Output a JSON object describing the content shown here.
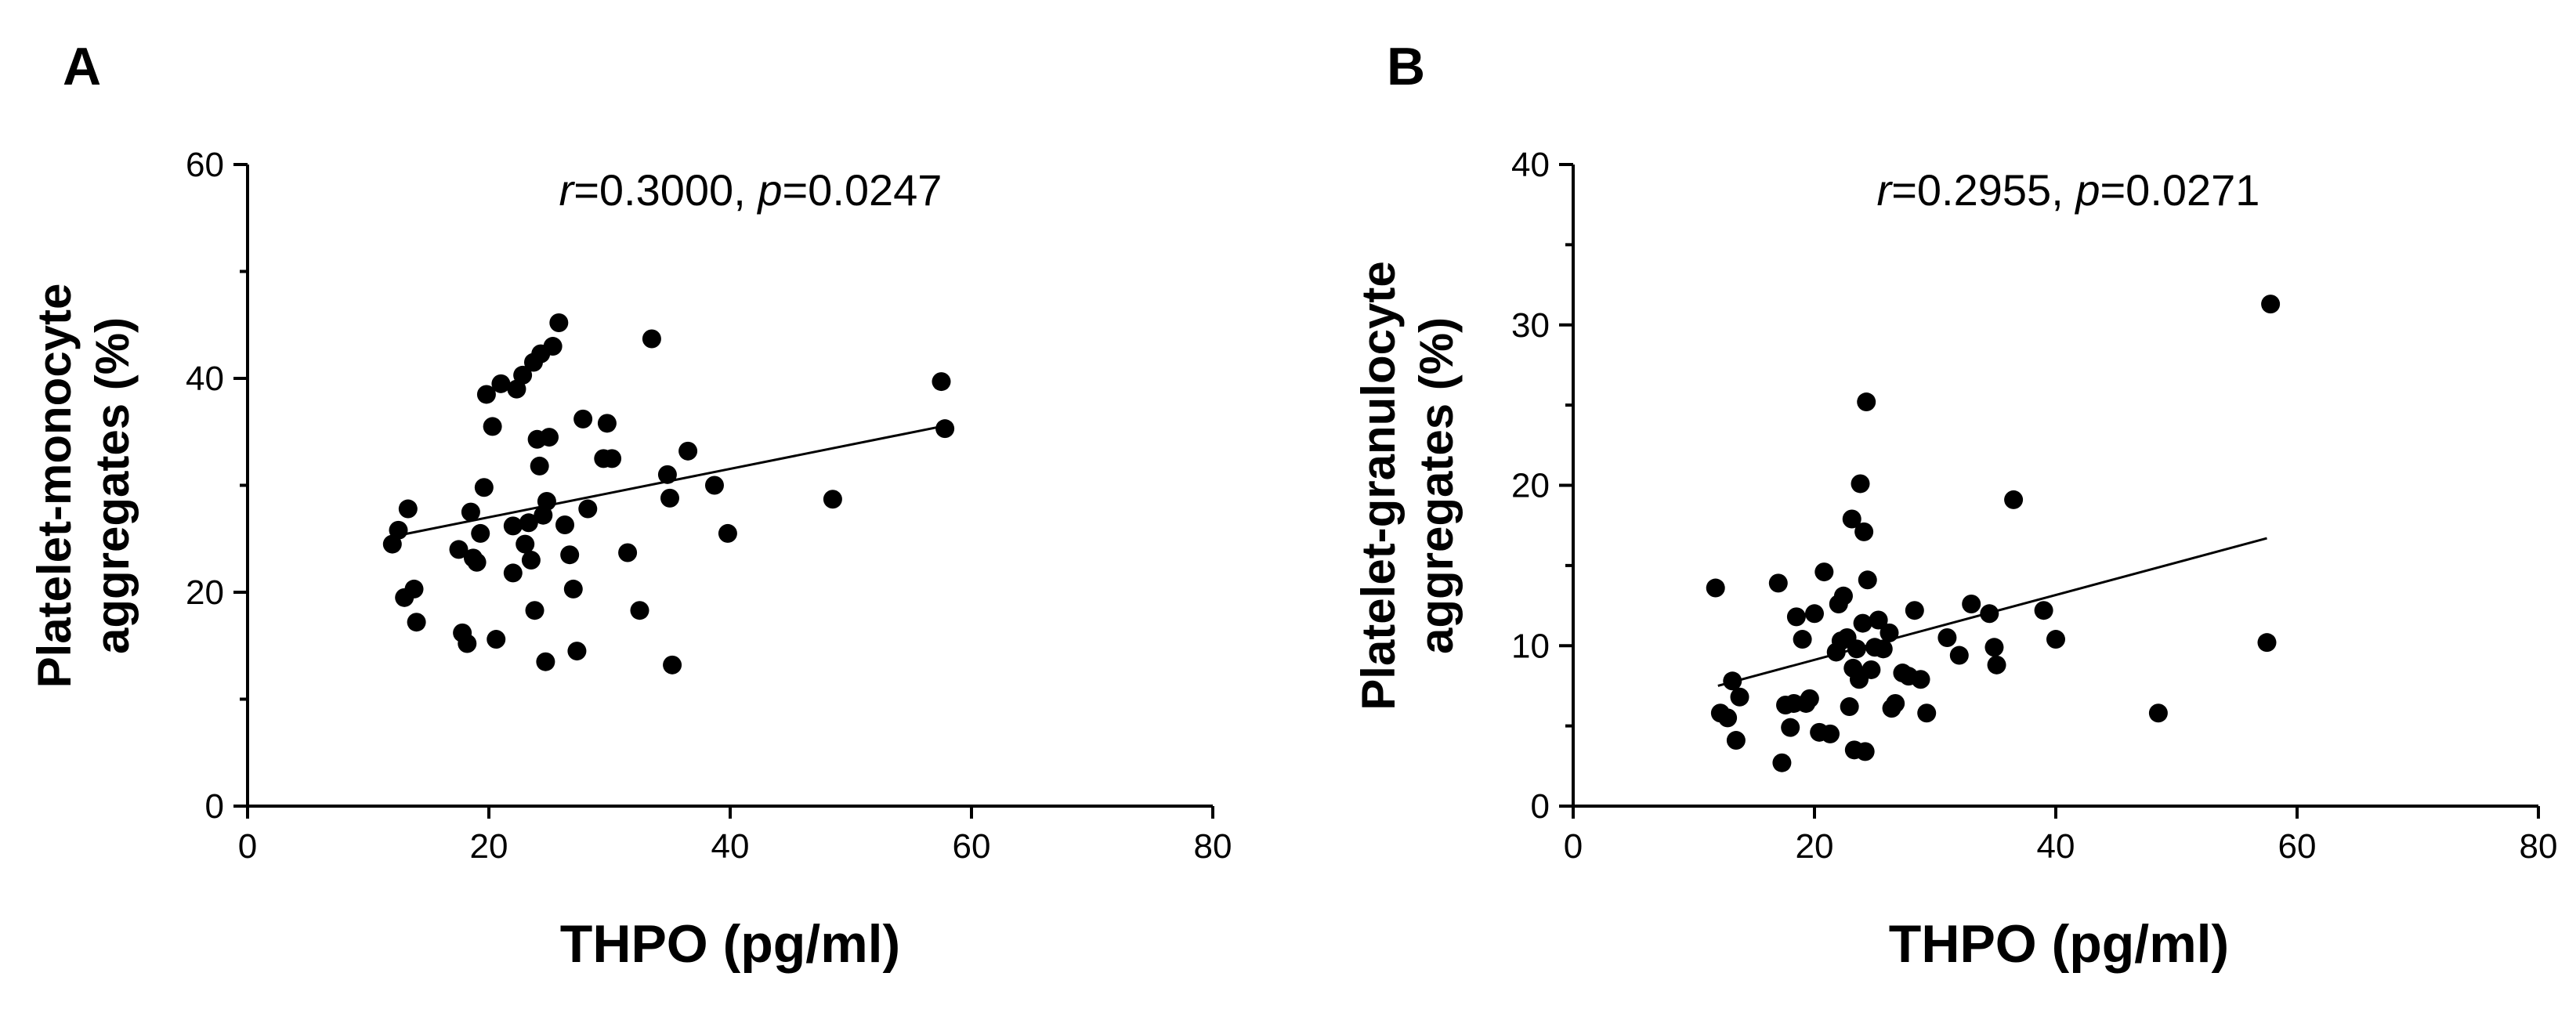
{
  "chart_data": [
    {
      "panel": "A",
      "type": "scatter",
      "xlabel": "THPO (pg/ml)",
      "ylabel_line1": "Platelet-monocyte",
      "ylabel_line2": "aggregates (%)",
      "annotation": {
        "r_label": "r",
        "r_value": "=0.3000, ",
        "p_label": "p",
        "p_value": "=0.0247"
      },
      "xlim": [
        0,
        80
      ],
      "ylim": [
        0,
        60
      ],
      "xticks": [
        0,
        20,
        40,
        60,
        80
      ],
      "yticks": [
        0,
        20,
        40,
        60
      ],
      "fit_line": {
        "x": [
          12,
          57.5
        ],
        "y": [
          25.2,
          35.5
        ]
      },
      "points": [
        [
          12,
          24.5
        ],
        [
          12.5,
          25.8
        ],
        [
          13,
          19.5
        ],
        [
          13.3,
          27.8
        ],
        [
          13.8,
          20.3
        ],
        [
          14,
          17.2
        ],
        [
          17.5,
          24
        ],
        [
          17.8,
          16.2
        ],
        [
          18.2,
          15.2
        ],
        [
          18.5,
          27.5
        ],
        [
          18.7,
          23.2
        ],
        [
          19,
          22.8
        ],
        [
          19.3,
          25.5
        ],
        [
          19.6,
          29.8
        ],
        [
          19.8,
          38.5
        ],
        [
          20.3,
          35.5
        ],
        [
          20.6,
          15.6
        ],
        [
          21,
          39.5
        ],
        [
          22,
          26.2
        ],
        [
          22,
          21.8
        ],
        [
          22.3,
          39
        ],
        [
          22.8,
          40.3
        ],
        [
          23,
          24.5
        ],
        [
          23.3,
          26.5
        ],
        [
          23.7,
          41.5
        ],
        [
          23.5,
          23
        ],
        [
          23.8,
          18.3
        ],
        [
          24,
          34.3
        ],
        [
          24.2,
          31.8
        ],
        [
          24.3,
          42.3
        ],
        [
          24.5,
          27.2
        ],
        [
          24.7,
          13.5
        ],
        [
          24.8,
          28.5
        ],
        [
          25,
          34.5
        ],
        [
          25.3,
          43
        ],
        [
          25.8,
          45.2
        ],
        [
          26.3,
          26.3
        ],
        [
          26.7,
          23.5
        ],
        [
          27,
          20.3
        ],
        [
          27.3,
          14.5
        ],
        [
          27.8,
          36.2
        ],
        [
          28.2,
          27.8
        ],
        [
          29.5,
          32.5
        ],
        [
          29.8,
          35.8
        ],
        [
          30.2,
          32.5
        ],
        [
          31.5,
          23.7
        ],
        [
          32.5,
          18.3
        ],
        [
          33.5,
          43.7
        ],
        [
          34.8,
          31
        ],
        [
          35,
          28.8
        ],
        [
          35.2,
          13.2
        ],
        [
          36.5,
          33.2
        ],
        [
          38.7,
          30
        ],
        [
          39.8,
          25.5
        ],
        [
          48.5,
          28.7
        ],
        [
          57.5,
          39.7
        ],
        [
          57.8,
          35.3
        ]
      ]
    },
    {
      "panel": "B",
      "type": "scatter",
      "xlabel": "THPO (pg/ml)",
      "ylabel_line1": "Platelet-granulocyte",
      "ylabel_line2": "aggregates (%)",
      "annotation": {
        "r_label": "r",
        "r_value": "=0.2955, ",
        "p_label": "p",
        "p_value": "=0.0271"
      },
      "xlim": [
        0,
        80
      ],
      "ylim": [
        0,
        40
      ],
      "xticks": [
        0,
        20,
        40,
        60,
        80
      ],
      "yticks": [
        0,
        10,
        20,
        30,
        40
      ],
      "fit_line": {
        "x": [
          12,
          57.5
        ],
        "y": [
          7.5,
          16.7
        ]
      },
      "points": [
        [
          11.8,
          13.6
        ],
        [
          12.2,
          5.8
        ],
        [
          12.8,
          5.5
        ],
        [
          13.2,
          7.8
        ],
        [
          13.5,
          4.1
        ],
        [
          13.8,
          6.8
        ],
        [
          17,
          13.9
        ],
        [
          17.3,
          2.7
        ],
        [
          17.6,
          6.3
        ],
        [
          18,
          4.9
        ],
        [
          18.3,
          6.4
        ],
        [
          18.5,
          11.8
        ],
        [
          19,
          10.4
        ],
        [
          19.3,
          6.4
        ],
        [
          19.6,
          6.7
        ],
        [
          20,
          12
        ],
        [
          20.4,
          4.6
        ],
        [
          20.8,
          14.6
        ],
        [
          21.3,
          4.5
        ],
        [
          21.8,
          9.6
        ],
        [
          22,
          12.6
        ],
        [
          22.2,
          10.3
        ],
        [
          22.4,
          13.1
        ],
        [
          22.7,
          10.5
        ],
        [
          22.9,
          6.2
        ],
        [
          23.1,
          17.9
        ],
        [
          23.2,
          8.6
        ],
        [
          23.3,
          3.5
        ],
        [
          23.5,
          9.8
        ],
        [
          23.7,
          7.9
        ],
        [
          23.8,
          20.1
        ],
        [
          24,
          11.4
        ],
        [
          24.1,
          17.1
        ],
        [
          24.2,
          3.4
        ],
        [
          24.3,
          25.2
        ],
        [
          24.4,
          14.1
        ],
        [
          24.7,
          8.5
        ],
        [
          25,
          9.9
        ],
        [
          25.3,
          11.6
        ],
        [
          25.7,
          9.8
        ],
        [
          26.2,
          10.8
        ],
        [
          26.4,
          6.1
        ],
        [
          26.7,
          6.4
        ],
        [
          27.3,
          8.3
        ],
        [
          27.8,
          8.1
        ],
        [
          28.3,
          12.2
        ],
        [
          28.8,
          7.9
        ],
        [
          29.3,
          5.8
        ],
        [
          31,
          10.5
        ],
        [
          32,
          9.4
        ],
        [
          33,
          12.6
        ],
        [
          34.5,
          12
        ],
        [
          34.9,
          9.9
        ],
        [
          35.1,
          8.8
        ],
        [
          36.5,
          19.1
        ],
        [
          39,
          12.2
        ],
        [
          40,
          10.4
        ],
        [
          48.5,
          5.8
        ],
        [
          57.5,
          10.2
        ],
        [
          57.8,
          31.3
        ]
      ]
    }
  ]
}
